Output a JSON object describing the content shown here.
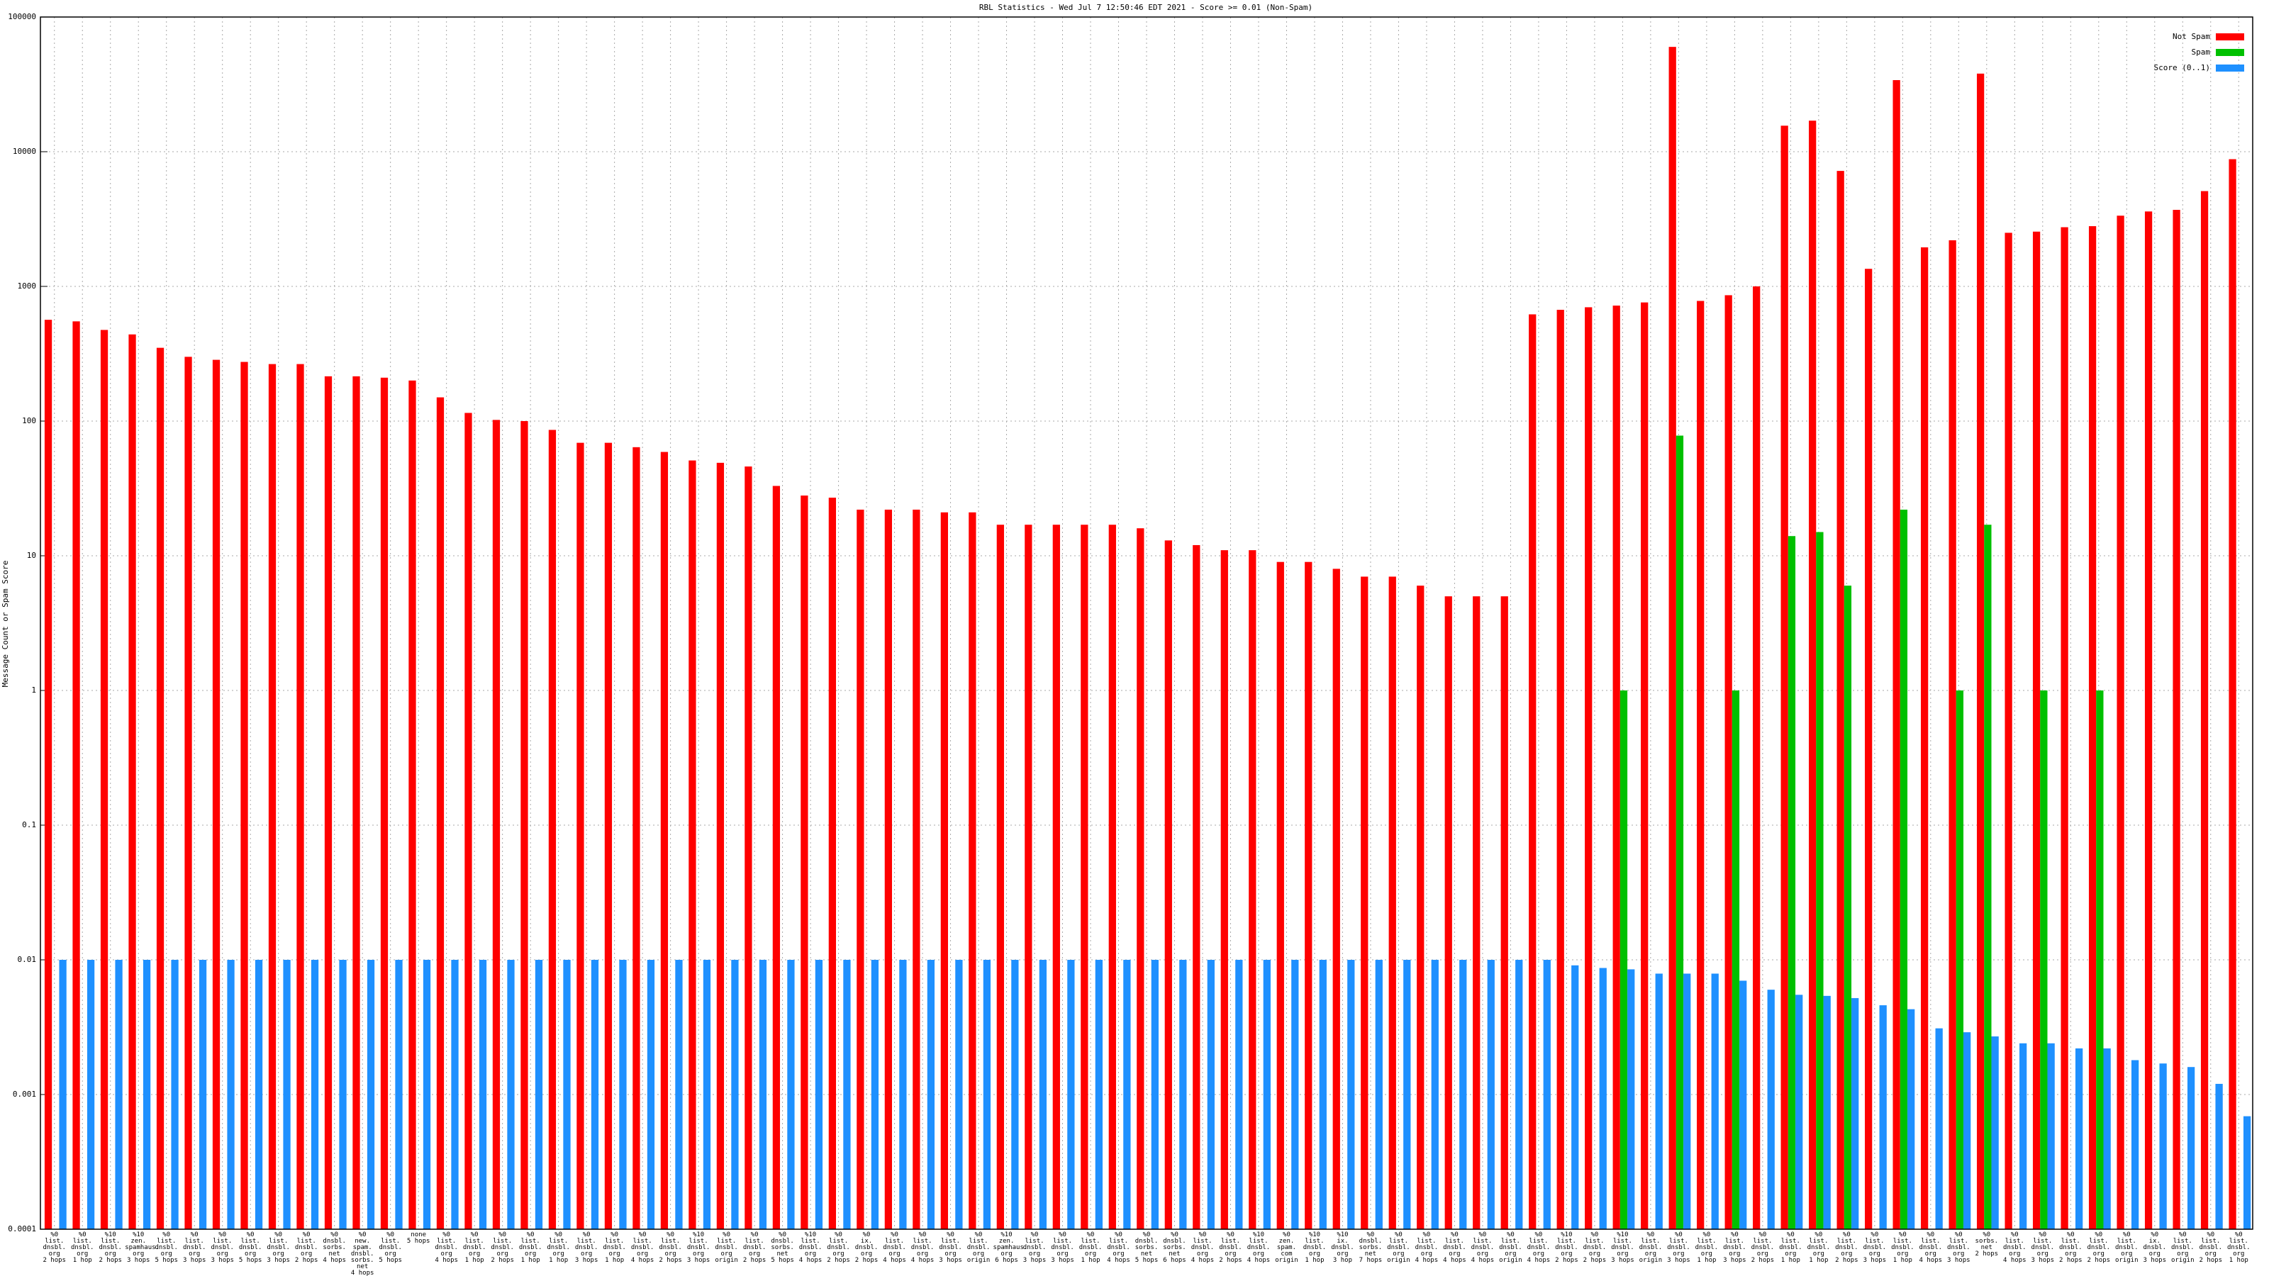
{
  "chart_data": {
    "type": "bar",
    "title": "RBL Statistics - Wed Jul  7 12:50:46 EDT 2021 - Score >= 0.01 (Non-Spam)",
    "y_label": "Message Count or Spam Score",
    "log_scale": true,
    "grid": true,
    "legend": "upper right",
    "ylim": [
      0.0001,
      100000
    ],
    "yticks": [
      0.0001,
      0.001,
      0.01,
      0.1,
      1,
      10,
      100,
      1000,
      10000,
      100000
    ],
    "categories": [
      "%0\nlist.\ndnsbl.\norg\n2 hops",
      "%0\nlist.\ndnsbl.\norg\n1 hop",
      "%10\nlist.\ndnsbl.\norg\n2 hops",
      "%10\nzen.\nspamhaus.\norg\n3 hops",
      "%0\nlist.\ndnsbl.\norg\n5 hops",
      "%0\nlist.\ndnsbl.\norg\n3 hops",
      "%0\nlist.\ndnsbl.\norg\n3 hops",
      "%0\nlist.\ndnsbl.\norg\n5 hops",
      "%0\nlist.\ndnsbl.\norg\n3 hops",
      "%0\nlist.\ndnsbl.\norg\n2 hops",
      "%0\ndnsbl.\nsorbs.\nnet\n4 hops",
      "%0\nnew.\nspam.\ndnsbl.\nsorbs.\nnet\n4 hops",
      "%0\nlist.\ndnsbl.\norg\n5 hops",
      "none\n5 hops",
      "%0\nlist.\ndnsbl.\norg\n4 hops",
      "%0\nlist.\ndnsbl.\norg\n1 hop",
      "%0\nlist.\ndnsbl.\norg\n2 hops",
      "%0\nlist.\ndnsbl.\norg\n1 hop",
      "%0\nlist.\ndnsbl.\norg\n1 hop",
      "%0\nlist.\ndnsbl.\norg\n3 hops",
      "%0\nlist.\ndnsbl.\norg\n1 hop",
      "%0\nlist.\ndnsbl.\norg\n4 hops",
      "%0\nlist.\ndnsbl.\norg\n2 hops",
      "%10\nlist.\ndnsbl.\norg\n3 hops",
      "%0\nlist.\ndnsbl.\norg\norigin",
      "%0\nlist.\ndnsbl.\norg\n2 hops",
      "%0\ndnsbl.\nsorbs.\nnet\n5 hops",
      "%10\nlist.\ndnsbl.\norg\n4 hops",
      "%0\nlist.\ndnsbl.\norg\n2 hops",
      "%0\nix.\ndnsbl.\norg\n2 hops",
      "%0\nlist.\ndnsbl.\norg\n4 hops",
      "%0\nlist.\ndnsbl.\norg\n4 hops",
      "%0\nlist.\ndnsbl.\norg\n3 hops",
      "%0\nlist.\ndnsbl.\norg\norigin",
      "%10\nzen.\nspamhaus.\norg\n6 hops",
      "%0\nlist.\ndnsbl.\norg\n3 hops",
      "%0\nlist.\ndnsbl.\norg\n3 hops",
      "%0\nlist.\ndnsbl.\norg\n1 hop",
      "%0\nlist.\ndnsbl.\norg\n4 hops",
      "%0\ndnsbl.\nsorbs.\nnet\n5 hops",
      "%0\ndnsbl.\nsorbs.\nnet\n6 hops",
      "%0\nlist.\ndnsbl.\norg\n4 hops",
      "%0\nlist.\ndnsbl.\norg\n2 hops",
      "%10\nlist.\ndnsbl.\norg\n4 hops",
      "%0\nzen.\nspam.\ncom\norigin",
      "%10\nlist.\ndnsbl.\norg\n1 hop",
      "%10\nix.\ndnsbl.\norg\n3 hop",
      "%0\ndnsbl.\nsorbs.\nnet\n7 hops",
      "%0\nlist.\ndnsbl.\norg\norigin",
      "%0\nlist.\ndnsbl.\norg\n4 hops",
      "%0\nlist.\ndnsbl.\norg\n4 hops",
      "%0\nlist.\ndnsbl.\norg\n4 hops",
      "%0\nlist.\ndnsbl.\norg\norigin",
      "%0\nlist.\ndnsbl.\norg\n4 hops",
      "%10\nlist.\ndnsbl.\norg\n2 hops",
      "%0\nlist.\ndnsbl.\norg\n2 hops",
      "%10\nlist.\ndnsbl.\norg\n3 hops",
      "%0\nlist.\ndnsbl.\norg\norigin",
      "%0\nlist.\ndnsbl.\norg\n3 hops",
      "%0\nlist.\ndnsbl.\norg\n1 hop",
      "%0\nlist.\ndnsbl.\norg\n3 hops",
      "%0\nlist.\ndnsbl.\norg\n2 hops",
      "%0\nlist.\ndnsbl.\norg\n1 hop",
      "%0\nlist.\ndnsbl.\norg\n1 hop",
      "%0\nlist.\ndnsbl.\norg\n2 hops",
      "%0\nlist.\ndnsbl.\norg\n3 hops",
      "%0\nlist.\ndnsbl.\norg\n1 hop",
      "%0\nlist.\ndnsbl.\norg\n4 hops",
      "%0\nlist.\ndnsbl.\norg\n3 hops",
      "%0\nsorbs.\nnet\n2 hops",
      "%0\nlist.\ndnsbl.\norg\n4 hops",
      "%0\nlist.\ndnsbl.\norg\n3 hops",
      "%0\nlist.\ndnsbl.\norg\n2 hops",
      "%0\nlist.\ndnsbl.\norg\n2 hops",
      "%0\nlist.\ndnsbl.\norg\norigin",
      "%0\nix.\ndnsbl.\norg\n3 hops",
      "%0\nlist.\ndnsbl.\norg\norigin",
      "%0\nlist.\ndnsbl.\norg\n2 hops",
      "%0\nlist.\ndnsbl.\norg\n1 hop"
    ],
    "series": [
      {
        "name": "Not Spam",
        "color": "#ff0000",
        "values": [
          565,
          550,
          475,
          440,
          350,
          300,
          285,
          275,
          265,
          265,
          215,
          215,
          210,
          200,
          150,
          115,
          102,
          100,
          86,
          69,
          69,
          64,
          59,
          51,
          49,
          46,
          33,
          28,
          27,
          22,
          22,
          22,
          21,
          21,
          17,
          17,
          17,
          17,
          17,
          16,
          13,
          12,
          11,
          11,
          9,
          9,
          8,
          7,
          7,
          6,
          5,
          5,
          5,
          620,
          670,
          700,
          720,
          760,
          60000,
          780,
          860,
          1000,
          15600,
          17000,
          7200,
          1350,
          34000,
          1950,
          2200,
          38000,
          2500,
          2550,
          2750,
          2800,
          3350,
          3600,
          3700,
          5100,
          8800
        ]
      },
      {
        "name": "Spam",
        "color": "#00c000",
        "values": [
          null,
          null,
          null,
          null,
          null,
          null,
          null,
          null,
          null,
          null,
          null,
          null,
          null,
          null,
          null,
          null,
          null,
          null,
          null,
          null,
          null,
          null,
          null,
          null,
          null,
          null,
          null,
          null,
          null,
          null,
          null,
          null,
          null,
          null,
          null,
          null,
          null,
          null,
          null,
          null,
          null,
          null,
          null,
          null,
          null,
          null,
          null,
          null,
          null,
          null,
          null,
          null,
          null,
          null,
          null,
          null,
          1,
          null,
          78,
          null,
          1,
          null,
          14,
          15,
          6,
          null,
          22,
          null,
          1,
          17,
          null,
          1,
          null,
          1,
          null,
          null,
          null,
          null,
          null
        ]
      },
      {
        "name": "Score (0..1)",
        "color": "#1e90ff",
        "values": [
          0.01,
          0.01,
          0.01,
          0.01,
          0.01,
          0.01,
          0.01,
          0.01,
          0.01,
          0.01,
          0.01,
          0.01,
          0.01,
          0.01,
          0.01,
          0.01,
          0.01,
          0.01,
          0.01,
          0.01,
          0.01,
          0.01,
          0.01,
          0.01,
          0.01,
          0.01,
          0.01,
          0.01,
          0.01,
          0.01,
          0.01,
          0.01,
          0.01,
          0.01,
          0.01,
          0.01,
          0.01,
          0.01,
          0.01,
          0.01,
          0.01,
          0.01,
          0.01,
          0.01,
          0.01,
          0.01,
          0.01,
          0.01,
          0.01,
          0.01,
          0.01,
          0.01,
          0.01,
          0.01,
          0.0091,
          0.0087,
          0.0085,
          0.0079,
          0.0079,
          0.0079,
          0.007,
          0.006,
          0.0055,
          0.0054,
          0.0052,
          0.0046,
          0.0043,
          0.0031,
          0.0029,
          0.0027,
          0.0024,
          0.0024,
          0.0022,
          0.0022,
          0.0018,
          0.0017,
          0.0016,
          0.0012,
          0.00069
        ]
      }
    ]
  }
}
